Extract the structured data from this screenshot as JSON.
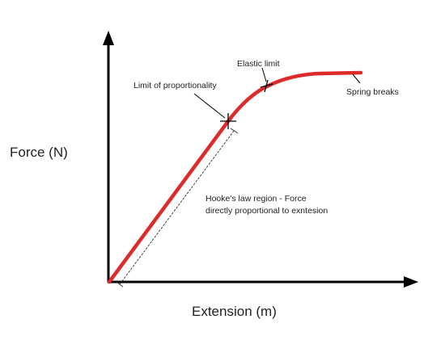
{
  "diagram": {
    "y_axis_label": "Force (N)",
    "x_axis_label": "Extension (m)",
    "annotations": {
      "elastic_limit": "Elastic limit",
      "limit_of_proportionality": "Limit of proportionality",
      "spring_breaks": "Spring breaks",
      "hookes_law_line1": "Hooke's law region - Force",
      "hookes_law_line2": "directly proportional to exntesion"
    },
    "colors": {
      "curve": "#dd2b2b",
      "axes": "#000000",
      "guide": "#333333"
    }
  }
}
